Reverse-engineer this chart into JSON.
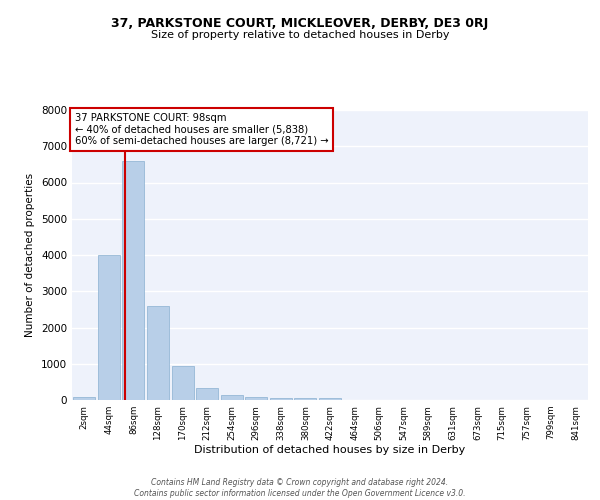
{
  "title1": "37, PARKSTONE COURT, MICKLEOVER, DERBY, DE3 0RJ",
  "title2": "Size of property relative to detached houses in Derby",
  "xlabel": "Distribution of detached houses by size in Derby",
  "ylabel": "Number of detached properties",
  "categories": [
    "2sqm",
    "44sqm",
    "86sqm",
    "128sqm",
    "170sqm",
    "212sqm",
    "254sqm",
    "296sqm",
    "338sqm",
    "380sqm",
    "422sqm",
    "464sqm",
    "506sqm",
    "547sqm",
    "589sqm",
    "631sqm",
    "673sqm",
    "715sqm",
    "757sqm",
    "799sqm",
    "841sqm"
  ],
  "values": [
    80,
    4000,
    6600,
    2600,
    950,
    330,
    130,
    80,
    60,
    55,
    50,
    0,
    0,
    0,
    0,
    0,
    0,
    0,
    0,
    0,
    0
  ],
  "bar_color": "#b8cfe8",
  "bar_edge_color": "#8ab0d0",
  "background_color": "#eef2fb",
  "grid_color": "#ffffff",
  "vline_color": "#cc0000",
  "vline_x_index": 1.65,
  "annotation_text": "37 PARKSTONE COURT: 98sqm\n← 40% of detached houses are smaller (5,838)\n60% of semi-detached houses are larger (8,721) →",
  "annotation_box_color": "#ffffff",
  "annotation_box_edge": "#cc0000",
  "ylim": [
    0,
    8000
  ],
  "yticks": [
    0,
    1000,
    2000,
    3000,
    4000,
    5000,
    6000,
    7000,
    8000
  ],
  "footer1": "Contains HM Land Registry data © Crown copyright and database right 2024.",
  "footer2": "Contains public sector information licensed under the Open Government Licence v3.0."
}
